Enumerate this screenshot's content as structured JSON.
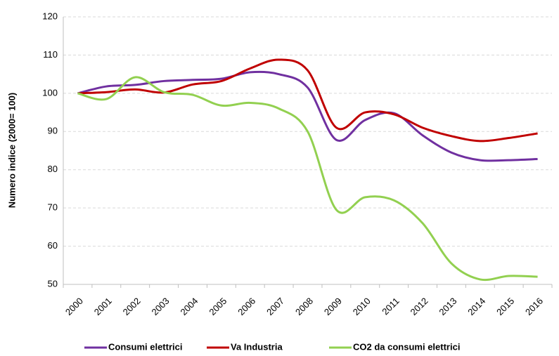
{
  "chart_data": {
    "type": "line",
    "y_label": "Numero indice (2000= 100)",
    "categories": [
      "2000",
      "2001",
      "2002",
      "2003",
      "2004",
      "2005",
      "2006",
      "2007",
      "2008",
      "2009",
      "2010",
      "2011",
      "2012",
      "2013",
      "2014",
      "2015",
      "2016"
    ],
    "series": [
      {
        "name": "Consumi elettrici",
        "color": "#7030a0",
        "values": [
          100,
          101.8,
          102.2,
          103.2,
          103.5,
          103.8,
          105.5,
          105,
          101.5,
          87.8,
          93,
          94.8,
          89,
          84.5,
          82.5,
          82.5,
          82.8
        ]
      },
      {
        "name": "Va Industria",
        "color": "#c00000",
        "values": [
          100,
          100.3,
          101,
          100.2,
          102.3,
          103.2,
          106.5,
          108.8,
          106,
          91,
          95,
          94.5,
          91,
          88.8,
          87.5,
          88.3,
          89.5
        ]
      },
      {
        "name": "CO2 da consumi elettrici",
        "color": "#92d050",
        "values": [
          100,
          98.5,
          104.2,
          100.3,
          99.6,
          96.8,
          97.5,
          96,
          90,
          69.5,
          72.8,
          72,
          66,
          55.5,
          51.3,
          52.2,
          52
        ]
      }
    ],
    "ylim": [
      50,
      120
    ],
    "yticks": [
      50,
      60,
      70,
      80,
      90,
      100,
      110,
      120
    ],
    "grid": true,
    "legend": "bottom"
  }
}
